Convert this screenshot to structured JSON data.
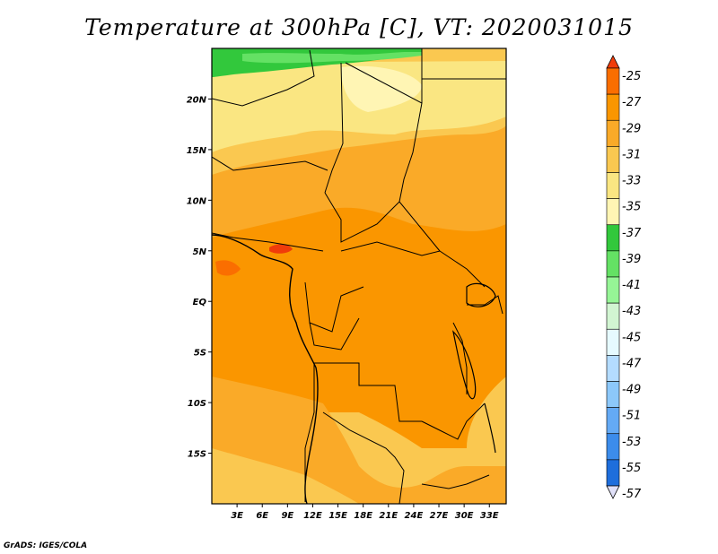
{
  "title": "Temperature at 300hPa [C], VT: 2020031015",
  "credit": "GrADS: IGES/COLA",
  "map": {
    "lon_range": [
      0,
      35
    ],
    "lat_range": [
      -20,
      25
    ],
    "lat_labels": [
      "20N",
      "15N",
      "10N",
      "5N",
      "EQ",
      "5S",
      "10S",
      "15S"
    ],
    "lat_values": [
      20,
      15,
      10,
      5,
      0,
      -5,
      -10,
      -15
    ],
    "lon_labels": [
      "3E",
      "6E",
      "9E",
      "12E",
      "15E",
      "18E",
      "21E",
      "24E",
      "27E",
      "30E",
      "33E"
    ],
    "lon_values": [
      3,
      6,
      9,
      12,
      15,
      18,
      21,
      24,
      27,
      30,
      33
    ]
  },
  "colorbar": {
    "labels": [
      "-25",
      "-27",
      "-29",
      "-31",
      "-33",
      "-35",
      "-37",
      "-39",
      "-41",
      "-43",
      "-45",
      "-47",
      "-49",
      "-51",
      "-53",
      "-55",
      "-57"
    ],
    "colors": [
      "#f03c0a",
      "#fa6e00",
      "#fa9600",
      "#faaa28",
      "#fac850",
      "#fae682",
      "#fff5b4",
      "#32c83c",
      "#64e164",
      "#96f596",
      "#d2f5d2",
      "#e6faff",
      "#b4dcff",
      "#8cc8fa",
      "#64aaf5",
      "#3c8ceb",
      "#1e6edc",
      "#0a50be",
      "#141e78"
    ]
  }
}
